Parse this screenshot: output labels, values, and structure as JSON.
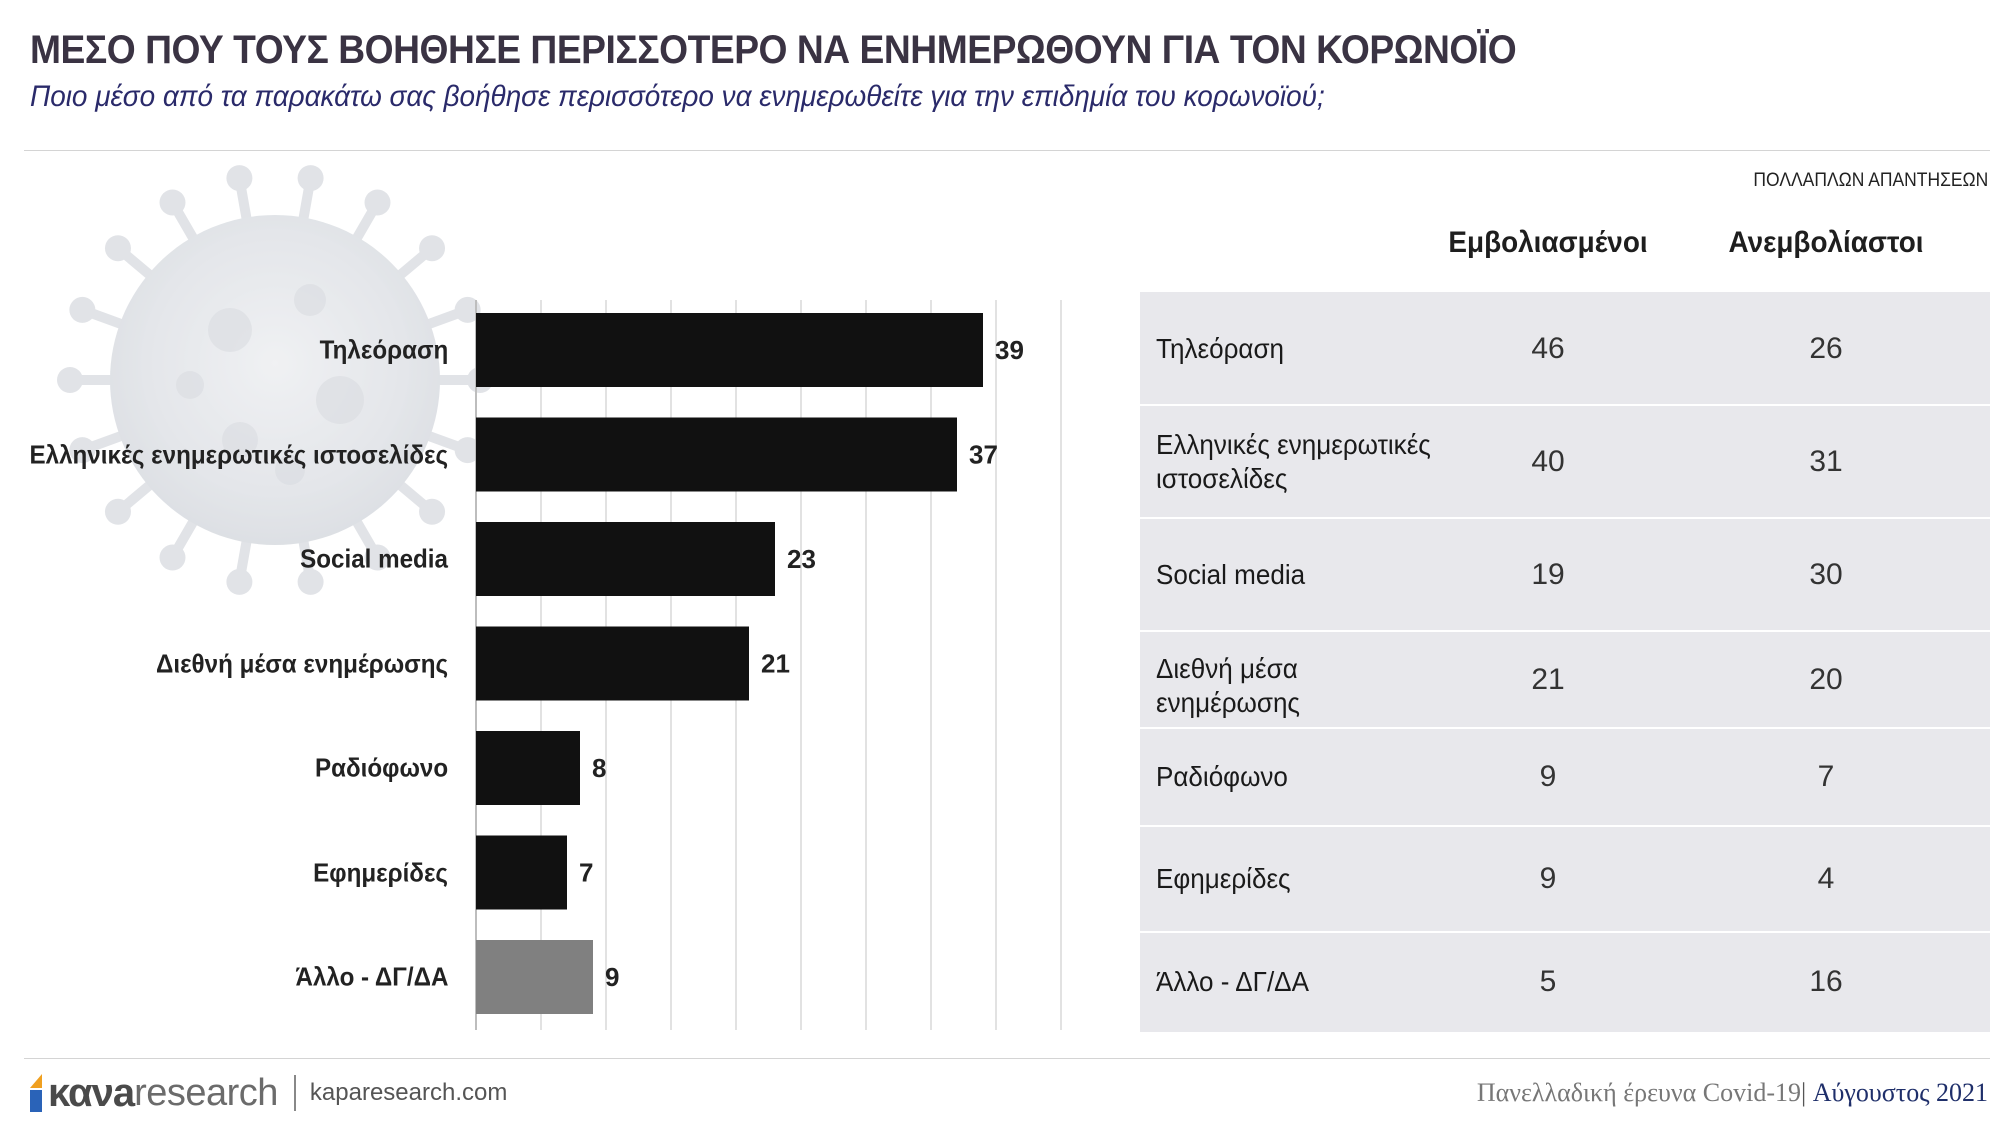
{
  "header": {
    "title": "ΜΕΣΟ ΠΟΥ ΤΟΥΣ ΒΟΗΘΗΣΕ ΠΕΡΙΣΣΟΤΕΡΟ ΝΑ ΕΝΗΜΕΡΩΘΟΥΝ ΓΙΑ ΤΟΝ ΚΟΡΩΝΟΪΟ",
    "subtitle": "Ποιο μέσο από τα παρακάτω σας βοήθησε περισσότερο να ενημερωθείτε για την επιδημία του κορωνοϊού;"
  },
  "note": "ΠΟΛΛΑΠΛΩΝ ΑΠΑΝΤΗΣΕΩΝ",
  "chart_data": {
    "type": "bar",
    "orientation": "horizontal",
    "categories": [
      "Τηλεόραση",
      "Ελληνικές ενημερωτικές ιστοσελίδες",
      "Social media",
      "Διεθνή μέσα ενημέρωσης",
      "Ραδιόφωνο",
      "Εφημερίδες",
      "Άλλο - ΔΓ/ΔΑ"
    ],
    "values": [
      39,
      37,
      23,
      21,
      8,
      7,
      9
    ],
    "value_labels": [
      "39",
      "37",
      "23",
      "21",
      "8",
      "7",
      "9"
    ],
    "bar_colors": [
      "#111111",
      "#111111",
      "#111111",
      "#111111",
      "#111111",
      "#111111",
      "#808080"
    ],
    "xlim": [
      0,
      45
    ],
    "grid": true
  },
  "table": {
    "headers": [
      "Εμβολιασμένοι",
      "Ανεμβολίαστοι"
    ],
    "rows": [
      {
        "label": "Τηλεόραση",
        "vaccinated": "46",
        "unvaccinated": "26"
      },
      {
        "label": "Ελληνικές ενημερωτικές ιστοσελίδες",
        "vaccinated": "40",
        "unvaccinated": "31"
      },
      {
        "label": "Social media",
        "vaccinated": "19",
        "unvaccinated": "30"
      },
      {
        "label": "Διεθνή μέσα ενημέρωσης",
        "vaccinated": "21",
        "unvaccinated": "20"
      },
      {
        "label": "Ραδιόφωνο",
        "vaccinated": "9",
        "unvaccinated": "7"
      },
      {
        "label": "Εφημερίδες",
        "vaccinated": "9",
        "unvaccinated": "4"
      },
      {
        "label": "Άλλο - ΔΓ/ΔΑ",
        "vaccinated": "5",
        "unvaccinated": "16"
      }
    ]
  },
  "footer": {
    "logo_bold": "κανa",
    "logo_light": "research",
    "url": "kaparesearch.com",
    "survey": "Πανελλαδική έρευνα Covid-19",
    "date": "Αύγουστος 2021"
  },
  "colors": {
    "title": "#3a3343",
    "subtitle": "#2a2a6a",
    "bar": "#111111",
    "bar_other": "#808080",
    "table_bg": "#e8e8ec",
    "footer_date": "#1f2f6a"
  }
}
